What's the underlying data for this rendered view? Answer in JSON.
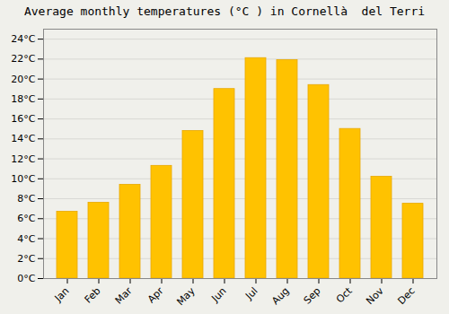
{
  "chart_data": {
    "type": "bar",
    "title": "Average monthly temperatures (°C ) in Cornellà  del Terri",
    "categories": [
      "Jan",
      "Feb",
      "Mar",
      "Apr",
      "May",
      "Jun",
      "Jul",
      "Aug",
      "Sep",
      "Oct",
      "Nov",
      "Dec"
    ],
    "values": [
      6.7,
      7.6,
      9.4,
      11.3,
      14.8,
      19.0,
      22.1,
      21.9,
      19.4,
      15.0,
      10.2,
      7.5
    ],
    "color": "#FFC200",
    "ylim": [
      0,
      25
    ],
    "yticks": [
      {
        "value": 0,
        "label": "0°C"
      },
      {
        "value": 2,
        "label": "2°C"
      },
      {
        "value": 4,
        "label": "4°C"
      },
      {
        "value": 6,
        "label": "6°C"
      },
      {
        "value": 8,
        "label": "8°C"
      },
      {
        "value": 10,
        "label": "10°C"
      },
      {
        "value": 12,
        "label": "12°C"
      },
      {
        "value": 14,
        "label": "14°C"
      },
      {
        "value": 16,
        "label": "16°C"
      },
      {
        "value": 18,
        "label": "18°C"
      },
      {
        "value": 20,
        "label": "20°C"
      },
      {
        "value": 22,
        "label": "22°C"
      },
      {
        "value": 24,
        "label": "24°C"
      }
    ],
    "grid": true
  }
}
